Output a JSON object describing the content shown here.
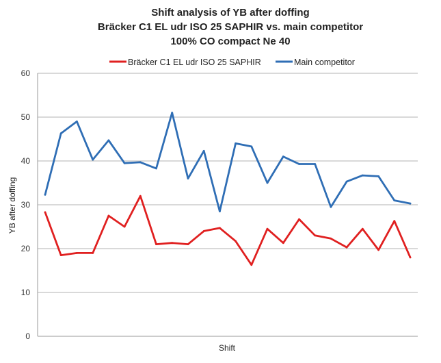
{
  "chart_data": {
    "type": "line",
    "title_lines": [
      "Shift analysis of YB after doffing",
      "Bräcker C1 EL udr ISO 25 SAPHIR vs. main competitor",
      "100% CO compact Ne 40"
    ],
    "xlabel": "Shift",
    "ylabel": "YB after doffing",
    "ylim": [
      0,
      60
    ],
    "yticks": [
      0,
      10,
      20,
      30,
      40,
      50,
      60
    ],
    "grid": true,
    "legend_position": "top",
    "x": [
      1,
      2,
      3,
      4,
      5,
      6,
      7,
      8,
      9,
      10,
      11,
      12,
      13,
      14,
      15,
      16,
      17,
      18,
      19,
      20,
      21,
      22,
      23,
      24
    ],
    "series": [
      {
        "name": "Bräcker C1 EL udr ISO 25 SAPHIR",
        "color": "#e02020",
        "values": [
          28.3,
          18.5,
          19.0,
          19.0,
          27.5,
          25.0,
          32.0,
          21.0,
          21.3,
          21.0,
          24.0,
          24.7,
          21.7,
          16.3,
          24.5,
          21.3,
          26.7,
          23.0,
          22.3,
          20.3,
          24.5,
          19.7,
          26.3,
          18.0
        ]
      },
      {
        "name": "Main competitor",
        "color": "#2f6eb5",
        "values": [
          32.3,
          46.3,
          49.0,
          40.3,
          44.7,
          39.5,
          39.7,
          38.3,
          51.0,
          36.0,
          42.3,
          28.5,
          44.0,
          43.3,
          35.0,
          41.0,
          39.3,
          39.3,
          29.5,
          35.3,
          36.7,
          36.5,
          31.0,
          30.3
        ]
      }
    ]
  }
}
